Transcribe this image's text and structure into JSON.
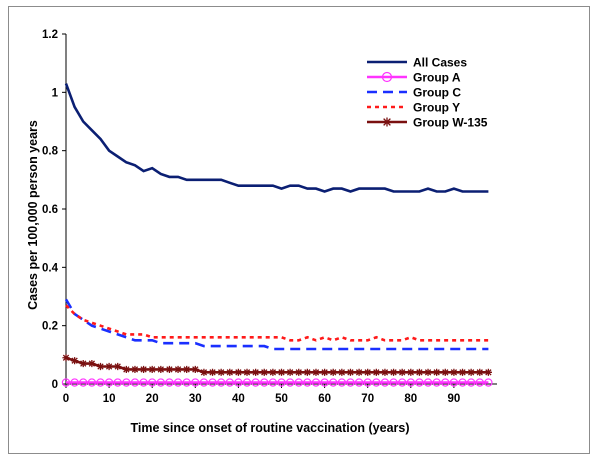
{
  "chart_data": {
    "type": "line",
    "title": "",
    "xlabel": "Time since onset of routine vaccination (years)",
    "ylabel": "Cases per 100,000 person years",
    "xlim": [
      0,
      100
    ],
    "ylim": [
      0,
      1.2
    ],
    "x_ticks": [
      0,
      10,
      20,
      30,
      40,
      50,
      60,
      70,
      80,
      90
    ],
    "y_ticks": [
      0,
      0.2,
      0.4,
      0.6,
      0.8,
      1.0,
      1.2
    ],
    "y_tick_labels": [
      "0",
      "0.2",
      "0.4",
      "0.6",
      "0.8",
      "1",
      "1.2"
    ],
    "grid": false,
    "legend_position": "top-right",
    "x": [
      0,
      2,
      4,
      6,
      8,
      10,
      12,
      14,
      16,
      18,
      20,
      22,
      24,
      26,
      28,
      30,
      32,
      34,
      36,
      38,
      40,
      42,
      44,
      46,
      48,
      50,
      52,
      54,
      56,
      58,
      60,
      62,
      64,
      66,
      68,
      70,
      72,
      74,
      76,
      78,
      80,
      82,
      84,
      86,
      88,
      90,
      92,
      94,
      96,
      98
    ],
    "series": [
      {
        "name": "All Cases",
        "color": "#0b1f73",
        "style": "solid",
        "marker": "none",
        "values": [
          1.03,
          0.95,
          0.9,
          0.87,
          0.84,
          0.8,
          0.78,
          0.76,
          0.75,
          0.73,
          0.74,
          0.72,
          0.71,
          0.71,
          0.7,
          0.7,
          0.7,
          0.7,
          0.7,
          0.69,
          0.68,
          0.68,
          0.68,
          0.68,
          0.68,
          0.67,
          0.68,
          0.68,
          0.67,
          0.67,
          0.66,
          0.67,
          0.67,
          0.66,
          0.67,
          0.67,
          0.67,
          0.67,
          0.66,
          0.66,
          0.66,
          0.66,
          0.67,
          0.66,
          0.66,
          0.67,
          0.66,
          0.66,
          0.66,
          0.66
        ]
      },
      {
        "name": "Group A",
        "color": "#ff33ff",
        "style": "solid",
        "marker": "circle",
        "values": [
          0.005,
          0.005,
          0.005,
          0.005,
          0.005,
          0.005,
          0.005,
          0.005,
          0.005,
          0.005,
          0.005,
          0.005,
          0.005,
          0.005,
          0.005,
          0.005,
          0.005,
          0.005,
          0.005,
          0.005,
          0.005,
          0.005,
          0.005,
          0.005,
          0.005,
          0.005,
          0.005,
          0.005,
          0.005,
          0.005,
          0.005,
          0.005,
          0.005,
          0.005,
          0.005,
          0.005,
          0.005,
          0.005,
          0.005,
          0.005,
          0.005,
          0.005,
          0.005,
          0.005,
          0.005,
          0.005,
          0.005,
          0.005,
          0.005,
          0.005
        ]
      },
      {
        "name": "Group C",
        "color": "#1a2fff",
        "style": "dash",
        "marker": "none",
        "values": [
          0.29,
          0.24,
          0.22,
          0.2,
          0.19,
          0.18,
          0.17,
          0.16,
          0.15,
          0.15,
          0.15,
          0.14,
          0.14,
          0.14,
          0.14,
          0.14,
          0.13,
          0.13,
          0.13,
          0.13,
          0.13,
          0.13,
          0.13,
          0.13,
          0.12,
          0.12,
          0.12,
          0.12,
          0.12,
          0.12,
          0.12,
          0.12,
          0.12,
          0.12,
          0.12,
          0.12,
          0.12,
          0.12,
          0.12,
          0.12,
          0.12,
          0.12,
          0.12,
          0.12,
          0.12,
          0.12,
          0.12,
          0.12,
          0.12,
          0.12
        ]
      },
      {
        "name": "Group Y",
        "color": "#ff1a1a",
        "style": "dot",
        "marker": "none",
        "values": [
          0.27,
          0.24,
          0.22,
          0.21,
          0.2,
          0.19,
          0.18,
          0.17,
          0.17,
          0.17,
          0.16,
          0.16,
          0.16,
          0.16,
          0.16,
          0.16,
          0.16,
          0.16,
          0.16,
          0.16,
          0.16,
          0.16,
          0.16,
          0.16,
          0.16,
          0.16,
          0.15,
          0.15,
          0.16,
          0.15,
          0.16,
          0.15,
          0.16,
          0.15,
          0.15,
          0.15,
          0.16,
          0.15,
          0.15,
          0.15,
          0.16,
          0.15,
          0.15,
          0.15,
          0.15,
          0.15,
          0.15,
          0.15,
          0.15,
          0.15
        ]
      },
      {
        "name": "Group W-135",
        "color": "#7a1010",
        "style": "solid",
        "marker": "star",
        "values": [
          0.09,
          0.08,
          0.07,
          0.07,
          0.06,
          0.06,
          0.06,
          0.05,
          0.05,
          0.05,
          0.05,
          0.05,
          0.05,
          0.05,
          0.05,
          0.05,
          0.04,
          0.04,
          0.04,
          0.04,
          0.04,
          0.04,
          0.04,
          0.04,
          0.04,
          0.04,
          0.04,
          0.04,
          0.04,
          0.04,
          0.04,
          0.04,
          0.04,
          0.04,
          0.04,
          0.04,
          0.04,
          0.04,
          0.04,
          0.04,
          0.04,
          0.04,
          0.04,
          0.04,
          0.04,
          0.04,
          0.04,
          0.04,
          0.04,
          0.04
        ]
      }
    ]
  }
}
